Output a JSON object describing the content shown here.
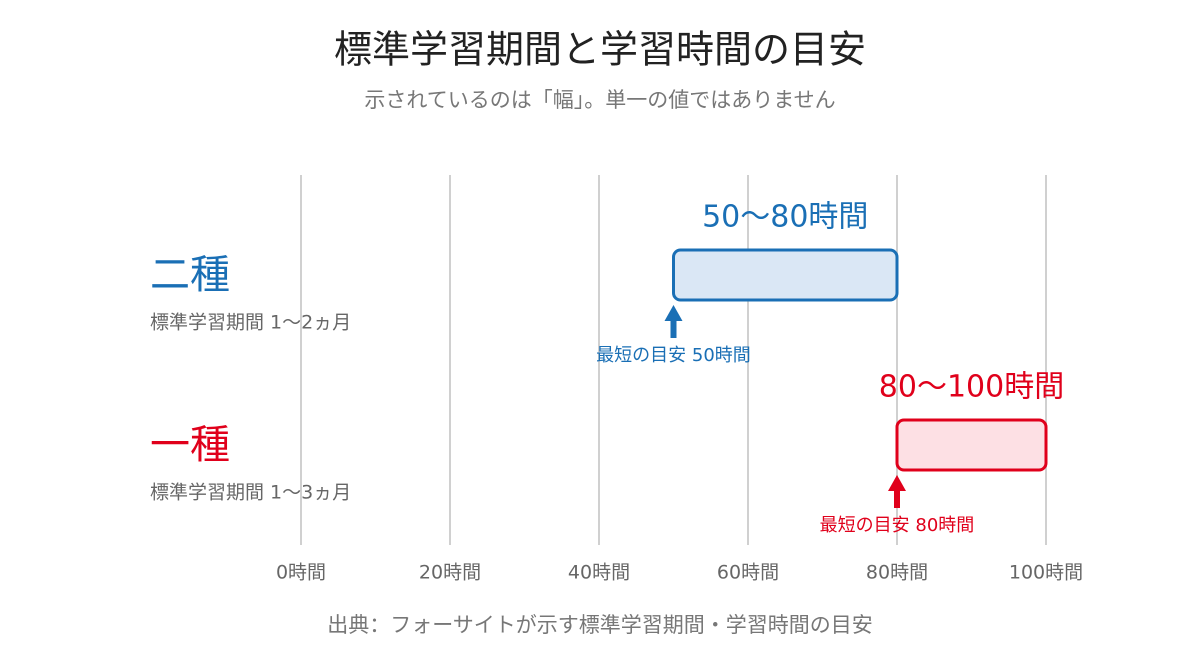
{
  "chart_data": {
    "type": "range-bar",
    "title": "標準学習期間と学習時間の目安",
    "subtitle": "示されているのは「幅」。単一の値ではありません",
    "source": "出典：フォーサイトが示す標準学習期間・学習時間の目安",
    "xlim": [
      0,
      100
    ],
    "xticks": [
      {
        "value": 0,
        "label": "0時間"
      },
      {
        "value": 20,
        "label": "20時間"
      },
      {
        "value": 40,
        "label": "40時間"
      },
      {
        "value": 60,
        "label": "60時間"
      },
      {
        "value": 80,
        "label": "80時間"
      },
      {
        "value": 100,
        "label": "100時間"
      }
    ],
    "grid": true,
    "bars": [
      {
        "category": "二種",
        "sublabel": "標準学習期間 1〜2ヵ月",
        "low": 50,
        "high": 80,
        "value_label": "50〜80時間",
        "note": "最短の目安 50時間",
        "color": "#1a6fb5",
        "fill": "#dae7f5"
      },
      {
        "category": "一種",
        "sublabel": "標準学習期間 1〜3ヵ月",
        "low": 80,
        "high": 100,
        "value_label": "80〜100時間",
        "note": "最短の目安 80時間",
        "color": "#e0001b",
        "fill": "#fde0e4"
      }
    ]
  }
}
